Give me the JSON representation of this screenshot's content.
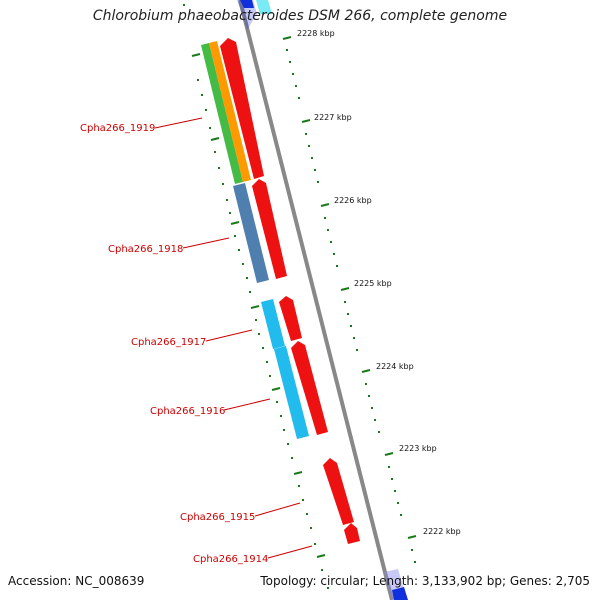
{
  "title": "Chlorobium phaeobacteroides DSM 266, complete genome",
  "footer": {
    "accession": "Accession: NC_008639",
    "summary": "Topology: circular; Length: 3,133,902 bp; Genes: 2,705"
  },
  "ruler_labels": [
    "2228 kbp",
    "2227 kbp",
    "2226 kbp",
    "2225 kbp",
    "2224 kbp",
    "2223 kbp",
    "2222 kbp"
  ],
  "gene_labels": [
    "Cpha266_1919",
    "Cpha266_1918",
    "Cpha266_1917",
    "Cpha266_1916",
    "Cpha266_1915",
    "Cpha266_1914"
  ],
  "colors": {
    "backbone": "#888888",
    "forward_cds": "#ee1111",
    "label_red": "#cc0000",
    "tick_green": "#1a7a1a",
    "track_green": "#44bb44",
    "track_orange": "#ff9900",
    "track_steelblue": "#4f7fae",
    "track_lightblue": "#22bbee",
    "track_blue": "#1030dd"
  }
}
